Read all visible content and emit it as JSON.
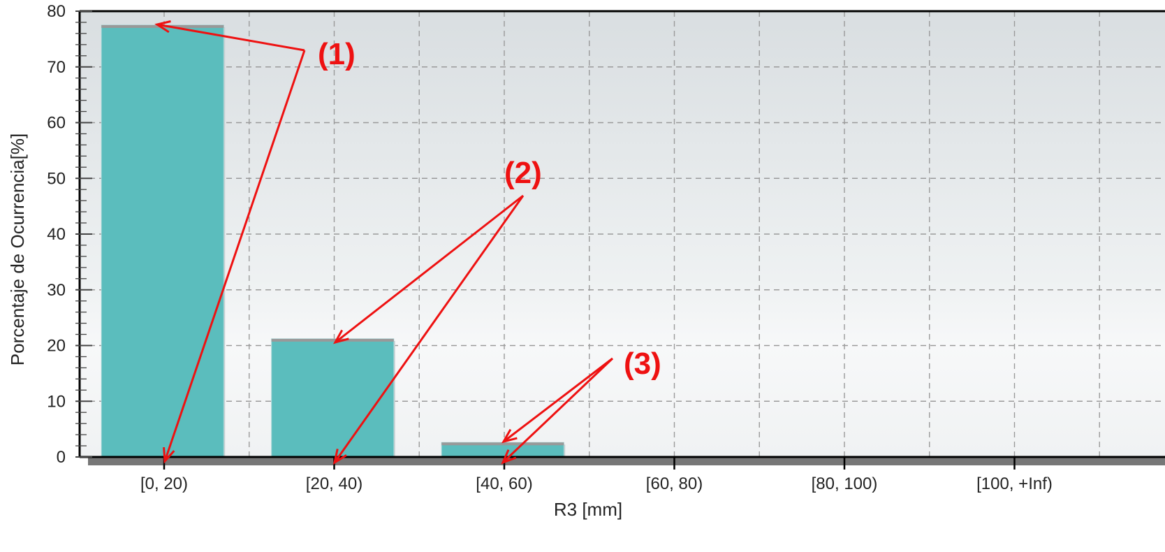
{
  "chart_data": {
    "type": "bar",
    "categories": [
      "[0, 20)",
      "[20, 40)",
      "[40, 60)",
      "[60, 80)",
      "[80, 100)",
      "[100, +Inf)"
    ],
    "values": [
      77.5,
      21.2,
      2.6,
      0,
      0,
      0
    ],
    "xlabel": "R3 [mm]",
    "ylabel": "Porcentaje de Ocurrencia[%]",
    "ylim": [
      0,
      80
    ],
    "yticks": [
      "0",
      "10",
      "20",
      "30",
      "40",
      "50",
      "60",
      "70",
      "80"
    ],
    "grid": true,
    "bar_color": "#5bbdbd",
    "annotation_color": "#ee1111",
    "annotations": [
      {
        "label": "(1)",
        "targets": [
          0,
          0
        ]
      },
      {
        "label": "(2)",
        "targets": [
          1,
          1
        ]
      },
      {
        "label": "(3)",
        "targets": [
          2,
          2
        ]
      }
    ]
  }
}
